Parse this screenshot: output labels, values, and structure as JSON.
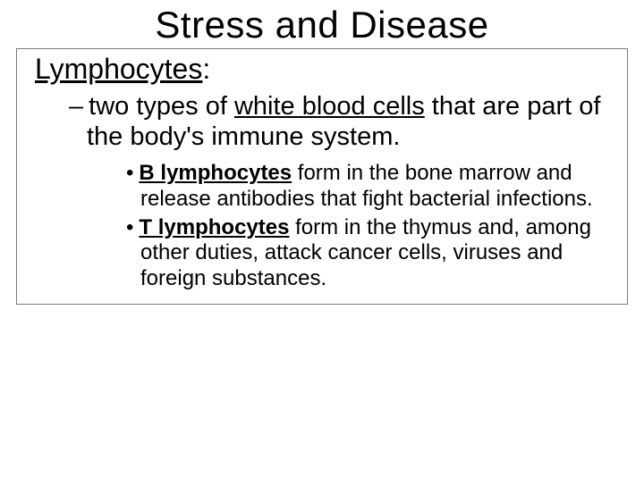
{
  "slide": {
    "title": "Stress and Disease",
    "term_underlined": "Lymphocytes",
    "term_suffix": ":",
    "def_dash": "–",
    "def_pre": "two types of ",
    "def_underlined": "white blood cells",
    "def_post": " that are part of the body's immune system.",
    "sub_bullet": "•",
    "sub1_bold": "B lymphocytes",
    "sub1_rest": " form in the bone marrow and release antibodies that fight bacterial infections.",
    "sub2_bold": "T lymphocytes",
    "sub2_rest": "  form in the thymus and, among other duties, attack cancer cells, viruses and foreign substances."
  },
  "colors": {
    "background": "#ffffff",
    "text": "#000000",
    "box_border": "#7a7a7a"
  },
  "fonts": {
    "family": "Comic Sans MS",
    "title_size_pt": 32,
    "term_size_pt": 24,
    "def_size_pt": 22,
    "sub_size_pt": 18
  }
}
